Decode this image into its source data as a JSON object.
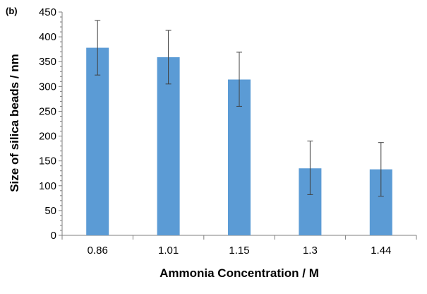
{
  "chart_data": {
    "type": "bar",
    "panel_label": "(b)",
    "title": "",
    "xlabel": "Ammonia Concentration / M",
    "ylabel": "Size of silica beads / nm",
    "categories": [
      "0.86",
      "1.01",
      "1.15",
      "1.3",
      "1.44"
    ],
    "series": [
      {
        "values": [
          378,
          359,
          314,
          135,
          133
        ],
        "error_plus": [
          55,
          54,
          55,
          55,
          54
        ],
        "error_minus": [
          55,
          54,
          54,
          53,
          54
        ]
      }
    ],
    "ylim": [
      0,
      450
    ],
    "yticks": [
      "0",
      "50",
      "100",
      "150",
      "200",
      "250",
      "300",
      "350",
      "400",
      "450"
    ],
    "grid": false,
    "legend": "none",
    "bar_color": "#5b9bd5",
    "error_bar_color": "#404040",
    "axis_color": "#7f7f7f"
  }
}
